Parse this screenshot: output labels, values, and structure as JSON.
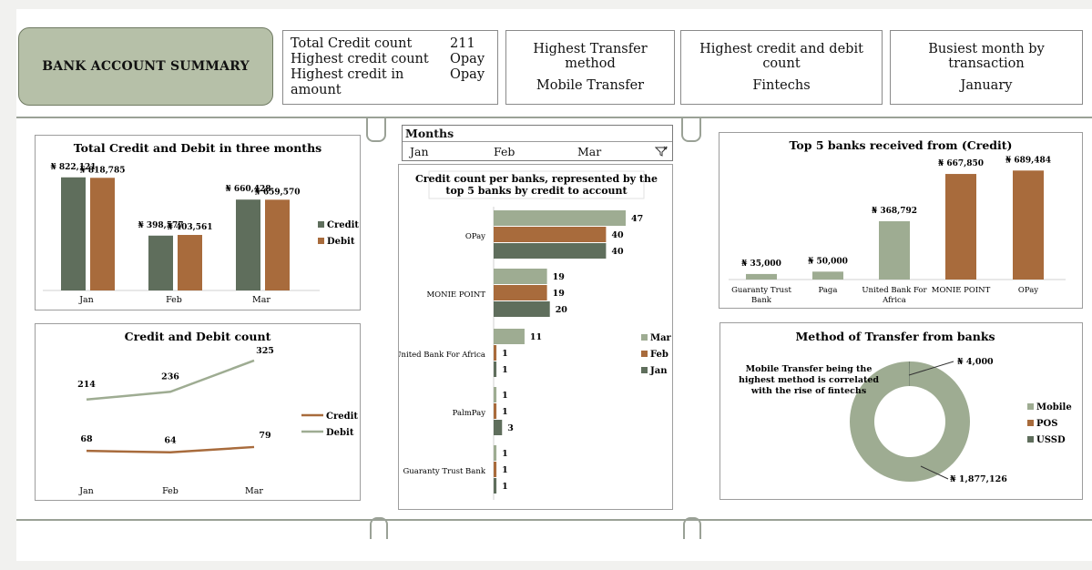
{
  "header": {
    "title": "BANK ACCOUNT SUMMARY",
    "kpi_list": [
      {
        "label": "Total Credit count",
        "value": "211"
      },
      {
        "label": "Highest credit count",
        "value": "Opay"
      },
      {
        "label": "Highest credit in amount",
        "value": "Opay"
      }
    ],
    "cards": [
      {
        "title": "Highest Transfer method",
        "value": "Mobile Transfer"
      },
      {
        "title": "Highest credit and debit count",
        "value": "Fintechs"
      },
      {
        "title": "Busiest month by transaction",
        "value": "January"
      }
    ]
  },
  "slicer": {
    "title": "Months",
    "items": [
      "Jan",
      "Feb",
      "Mar"
    ],
    "filter_icon": "filter-clear-icon"
  },
  "colors": {
    "credit": "#5f6e5c",
    "debit": "#a86b3c",
    "light": "#9eac92",
    "grid": "#d0d0d0"
  },
  "chart_data": [
    {
      "id": "totals",
      "type": "bar",
      "title": "Total Credit and Debit in three months",
      "categories": [
        "Jan",
        "Feb",
        "Mar"
      ],
      "series": [
        {
          "name": "Credit",
          "values": [
            822121,
            398577,
            660428
          ],
          "labels": [
            "₦ 822,121",
            "₦ 398,577",
            "₦ 660,428"
          ]
        },
        {
          "name": "Debit",
          "values": [
            818785,
            403561,
            659570
          ],
          "labels": [
            "₦ 818,785",
            "₦ 403,561",
            "₦ 659,570"
          ]
        }
      ],
      "legend": "right"
    },
    {
      "id": "counts",
      "type": "line",
      "title": "Credit and Debit count",
      "categories": [
        "Jan",
        "Feb",
        "Mar"
      ],
      "series": [
        {
          "name": "Credit",
          "values": [
            68,
            64,
            79
          ]
        },
        {
          "name": "Debit",
          "values": [
            214,
            236,
            325
          ]
        }
      ],
      "legend": "right"
    },
    {
      "id": "perbank",
      "type": "bar",
      "orientation": "horizontal",
      "title": "Credit count per banks, represented by the top 5 banks by credit to account",
      "title_lines": [
        "Credit count per banks, represented by the",
        "top 5 banks by credit to account"
      ],
      "categories": [
        "OPay",
        "MONIE POINT",
        "United Bank For Africa",
        "PalmPay",
        "Guaranty Trust Bank"
      ],
      "series": [
        {
          "name": "Mar",
          "values": [
            47,
            19,
            11,
            1,
            1
          ]
        },
        {
          "name": "Feb",
          "values": [
            40,
            19,
            1,
            1,
            1
          ]
        },
        {
          "name": "Jan",
          "values": [
            40,
            20,
            1,
            3,
            1
          ]
        }
      ],
      "legend": "right"
    },
    {
      "id": "top5",
      "type": "bar",
      "title": "Top 5 banks received from (Credit)",
      "categories": [
        "Guaranty Trust Bank",
        "Paga",
        "United Bank For Africa",
        "MONIE POINT",
        "OPay"
      ],
      "category_lines": [
        [
          "Guaranty Trust",
          "Bank"
        ],
        [
          "Paga"
        ],
        [
          "United Bank For",
          "Africa"
        ],
        [
          "MONIE POINT"
        ],
        [
          "OPay"
        ]
      ],
      "values": [
        35000,
        50000,
        368792,
        667850,
        689484
      ],
      "labels": [
        "₦ 35,000",
        "₦ 50,000",
        "₦ 368,792",
        "₦ 667,850",
        "₦ 689,484"
      ]
    },
    {
      "id": "methods",
      "type": "pie",
      "donut": true,
      "title": "Method of Transfer from banks",
      "slices": [
        {
          "name": "Mobile",
          "value": 1877126,
          "label": "₦ 1,877,126"
        },
        {
          "name": "POS",
          "value": 0
        },
        {
          "name": "USSD",
          "value": 4000,
          "label": "₦ 4,000"
        }
      ],
      "annotation": [
        "Mobile Transfer being the",
        "highest method is correlated",
        "with the rise of fintechs"
      ],
      "legend": "right"
    }
  ]
}
